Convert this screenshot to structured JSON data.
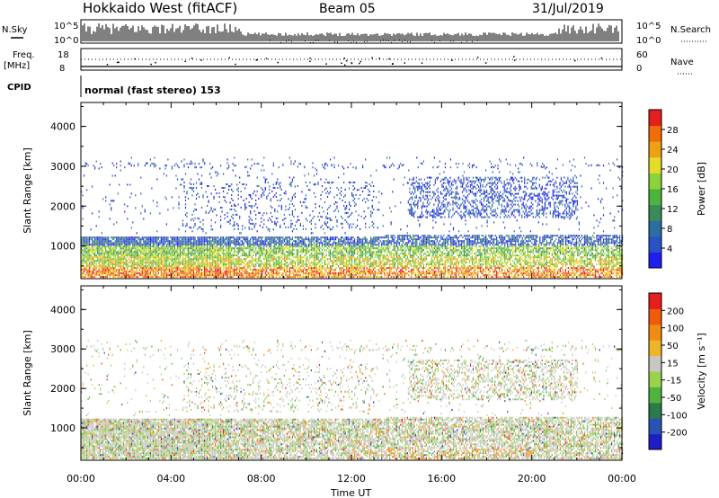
{
  "header": {
    "station": "Hokkaido West (fitACF)",
    "beam": "Beam 05",
    "date": "31/Jul/2019"
  },
  "labels": {
    "nsky": "N.Sky",
    "nsearch": "N.Search",
    "freq": "Freq.",
    "freq_unit": "[MHz]",
    "nave": "Nave",
    "cpid": "CPID",
    "cpid_text": "normal (fast stereo) 153",
    "noise_ticks": [
      "10^5",
      "10^0"
    ],
    "freq_ticks": [
      "18",
      "8"
    ],
    "nave_ticks": [
      "60",
      "0"
    ]
  },
  "chart_data": [
    {
      "type": "heatmap",
      "panel": "power",
      "xlabel": "Time UT",
      "ylabel": "Slant Range [km]",
      "x_ticks": [
        "00:00",
        "04:00",
        "08:00",
        "12:00",
        "16:00",
        "20:00",
        "00:00"
      ],
      "xlim": [
        0,
        24
      ],
      "ylim": [
        180,
        4600
      ],
      "y_ticks": [
        1000,
        2000,
        3000,
        4000
      ],
      "colorbar": {
        "label": "Power [dB]",
        "range": [
          0,
          32
        ],
        "ticks": [
          "4",
          "8",
          "12",
          "16",
          "20",
          "24",
          "28"
        ],
        "colors": [
          "#1e1ef0",
          "#2a52c8",
          "#2d6ea0",
          "#3c8a5a",
          "#4ab43c",
          "#8cd23c",
          "#e6dc28",
          "#f0a014",
          "#f06e0a",
          "#e61e1e"
        ]
      }
    },
    {
      "type": "heatmap",
      "panel": "velocity",
      "xlabel": "Time UT",
      "ylabel": "Slant Range [km]",
      "x_ticks": [
        "00:00",
        "04:00",
        "08:00",
        "12:00",
        "16:00",
        "20:00",
        "00:00"
      ],
      "xlim": [
        0,
        24
      ],
      "ylim": [
        180,
        4600
      ],
      "y_ticks": [
        1000,
        2000,
        3000,
        4000
      ],
      "colorbar": {
        "label": "Velocity [m s⁻¹]",
        "range": [
          -250,
          250
        ],
        "ticks": [
          "200",
          "100",
          "50",
          "15",
          "-15",
          "-50",
          "-100",
          "-200"
        ],
        "colors": [
          "#1e1ec8",
          "#2a52b4",
          "#2a7a4a",
          "#50b43c",
          "#9ad250",
          "#c8c8c0",
          "#f0b428",
          "#f08c14",
          "#f05a0a",
          "#e61e1e"
        ]
      }
    }
  ]
}
